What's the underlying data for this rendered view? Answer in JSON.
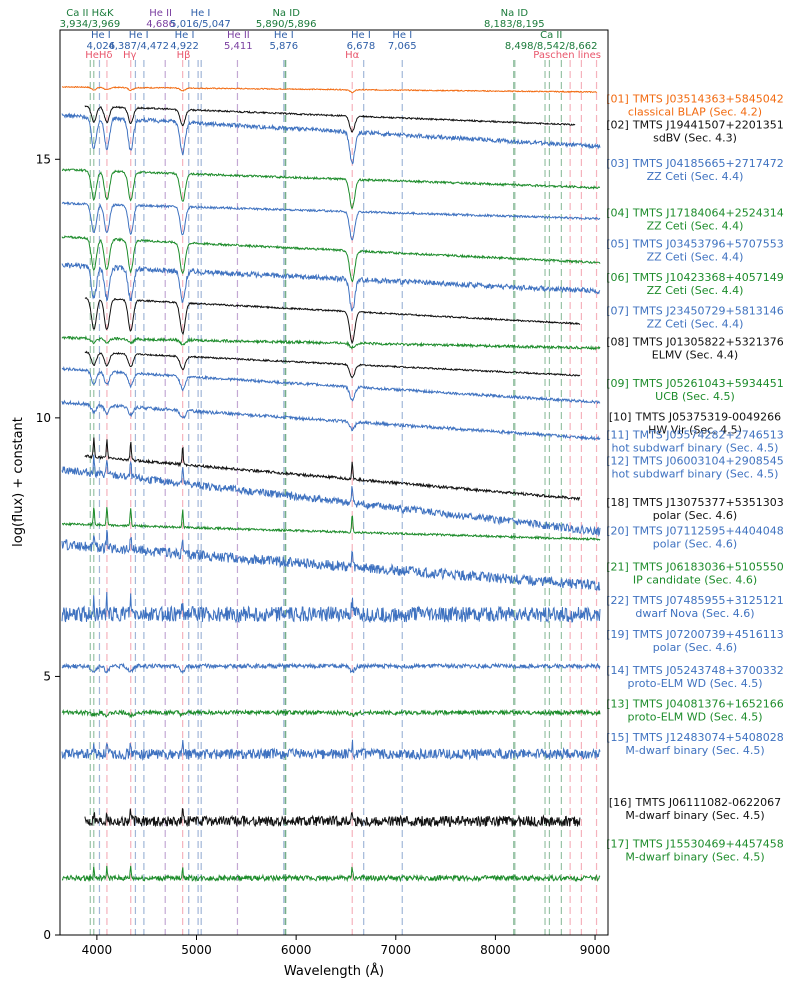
{
  "chart_data": {
    "type": "line",
    "xlabel": "Wavelength (Å)",
    "ylabel": "log(flux) + constant",
    "xlim": [
      3630,
      9130
    ],
    "ylim": [
      0,
      17.5
    ],
    "x_ticks": [
      4000,
      5000,
      6000,
      7000,
      8000,
      9000
    ],
    "y_ticks": [
      0,
      5,
      10,
      15
    ],
    "spectral_lines": [
      {
        "name": "Ca II H&K",
        "wavelengths_label": "3,934/3,969",
        "x": [
          3934,
          3969
        ],
        "color": "#1a7a3a",
        "tier": 1,
        "text_x": 3930
      },
      {
        "name": "He I",
        "wavelengths_label": "4,026",
        "x": [
          4026
        ],
        "color": "#2f5fa8",
        "tier": 2,
        "text_x": 4040
      },
      {
        "name": "HeHδ",
        "wavelengths_label": "",
        "x": [
          4101
        ],
        "color": "#e8556b",
        "tier": 3,
        "text_x": 4020
      },
      {
        "name": "He I",
        "wavelengths_label": "4,387/4,472",
        "x": [
          4387,
          4472
        ],
        "color": "#2f5fa8",
        "tier": 2,
        "text_x": 4420
      },
      {
        "name": "Hγ",
        "wavelengths_label": "",
        "x": [
          4340
        ],
        "color": "#e8556b",
        "tier": 3,
        "text_x": 4330
      },
      {
        "name": "He II",
        "wavelengths_label": "4,686",
        "x": [
          4686
        ],
        "color": "#7a3fa0",
        "tier": 1,
        "text_x": 4640
      },
      {
        "name": "He I",
        "wavelengths_label": "4,922",
        "x": [
          4922
        ],
        "color": "#2f5fa8",
        "tier": 2,
        "text_x": 4880
      },
      {
        "name": "Hβ",
        "wavelengths_label": "",
        "x": [
          4861
        ],
        "color": "#e8556b",
        "tier": 3,
        "text_x": 4870
      },
      {
        "name": "He I",
        "wavelengths_label": "5,016/5,047",
        "x": [
          5016,
          5047
        ],
        "color": "#2f5fa8",
        "tier": 1,
        "text_x": 5040
      },
      {
        "name": "He II",
        "wavelengths_label": "5,411",
        "x": [
          5411
        ],
        "color": "#7a3fa0",
        "tier": 2,
        "text_x": 5420
      },
      {
        "name": "Na ID",
        "wavelengths_label": "5,890/5,896",
        "x": [
          5890,
          5896
        ],
        "color": "#1a7a3a",
        "tier": 1,
        "text_x": 5900
      },
      {
        "name": "He I",
        "wavelengths_label": "5,876",
        "x": [
          5876
        ],
        "color": "#2f5fa8",
        "tier": 2,
        "text_x": 5876
      },
      {
        "name": "He I",
        "wavelengths_label": "6,678",
        "x": [
          6678
        ],
        "color": "#2f5fa8",
        "tier": 2,
        "text_x": 6650
      },
      {
        "name": "Hα",
        "wavelengths_label": "",
        "x": [
          6563
        ],
        "color": "#e8556b",
        "tier": 3,
        "text_x": 6563
      },
      {
        "name": "He I",
        "wavelengths_label": "7,065",
        "x": [
          7065
        ],
        "color": "#2f5fa8",
        "tier": 2,
        "text_x": 7065
      },
      {
        "name": "Na ID",
        "wavelengths_label": "8,183/8,195",
        "x": [
          8183,
          8195
        ],
        "color": "#1a7a3a",
        "tier": 1,
        "text_x": 8190
      },
      {
        "name": "Ca II",
        "wavelengths_label": "8,498/8,542/8,662",
        "x": [
          8498,
          8542,
          8662
        ],
        "color": "#1a7a3a",
        "tier": 2,
        "text_x": 8560
      },
      {
        "name": "Paschen lines",
        "wavelengths_label": "",
        "x": [
          8750,
          8863,
          9015
        ],
        "color": "#e8556b",
        "tier": 3,
        "text_x": 8720
      }
    ],
    "series": [
      {
        "id": "[01]",
        "name": "TMTS J03514363+5845042",
        "subtitle": "classical BLAP (Sec. 4.2)",
        "color": "#f26a10",
        "offset": 16.4,
        "x_range": [
          3650,
          9020
        ],
        "absorption": 0.05,
        "emission": 0,
        "noise": 0.02,
        "slope": -0.1,
        "label_y": 16.0
      },
      {
        "id": "[02]",
        "name": "TMTS J19441507+2201351",
        "subtitle": "sdBV (Sec. 4.3)",
        "color": "#111111",
        "offset": 16.05,
        "x_range": [
          3880,
          8800
        ],
        "absorption": 0.3,
        "emission": 0,
        "noise": 0.03,
        "slope": -0.4,
        "label_y": 15.5
      },
      {
        "id": "[03]",
        "name": "TMTS J04185665+2717472",
        "subtitle": "ZZ Ceti (Sec. 4.4)",
        "color": "#3f72c0",
        "offset": 15.85,
        "x_range": [
          3650,
          9050
        ],
        "absorption": 0.6,
        "emission": 0,
        "noise": 0.08,
        "slope": -0.6,
        "label_y": 14.75
      },
      {
        "id": "[04]",
        "name": "TMTS J17184064+2524314",
        "subtitle": "ZZ Ceti (Sec. 4.4)",
        "color": "#1d8c2b",
        "offset": 14.8,
        "x_range": [
          3650,
          9050
        ],
        "absorption": 0.55,
        "emission": 0,
        "noise": 0.04,
        "slope": -0.35,
        "label_y": 13.8
      },
      {
        "id": "[05]",
        "name": "TMTS J03453796+5707553",
        "subtitle": "ZZ Ceti (Sec. 4.4)",
        "color": "#3f72c0",
        "offset": 14.15,
        "x_range": [
          3650,
          9050
        ],
        "absorption": 0.55,
        "emission": 0,
        "noise": 0.04,
        "slope": -0.3,
        "label_y": 13.2
      },
      {
        "id": "[06]",
        "name": "TMTS J10423368+4057149",
        "subtitle": "ZZ Ceti (Sec. 4.4)",
        "color": "#1d8c2b",
        "offset": 13.5,
        "x_range": [
          3650,
          9050
        ],
        "absorption": 0.6,
        "emission": 0,
        "noise": 0.04,
        "slope": -0.5,
        "label_y": 12.55
      },
      {
        "id": "[07]",
        "name": "TMTS J23450729+5813146",
        "subtitle": "ZZ Ceti (Sec. 4.4)",
        "color": "#3f72c0",
        "offset": 12.95,
        "x_range": [
          3650,
          9050
        ],
        "absorption": 0.6,
        "emission": 0,
        "noise": 0.1,
        "slope": -0.5,
        "label_y": 11.9
      },
      {
        "id": "[08]",
        "name": "TMTS J01305822+5321376",
        "subtitle": "ELMV (Sec. 4.4)",
        "color": "#111111",
        "offset": 12.35,
        "x_range": [
          3880,
          8850
        ],
        "absorption": 0.6,
        "emission": 0,
        "noise": 0.03,
        "slope": -0.55,
        "label_y": 11.3
      },
      {
        "id": "[09]",
        "name": "TMTS J05261043+5934451",
        "subtitle": "UCB (Sec. 4.5)",
        "color": "#1d8c2b",
        "offset": 11.55,
        "x_range": [
          3650,
          9050
        ],
        "absorption": 0.08,
        "emission": 0,
        "noise": 0.05,
        "slope": -0.2,
        "label_y": 10.5
      },
      {
        "id": "[10]",
        "name": "TMTS J05375319-0049266",
        "subtitle": "HW Vir (Sec. 4.5)",
        "color": "#111111",
        "offset": 11.3,
        "x_range": [
          3880,
          8850
        ],
        "absorption": 0.25,
        "emission": 0,
        "noise": 0.03,
        "slope": -0.5,
        "label_y": 9.85
      },
      {
        "id": "[11]",
        "name": "TMTS J05574282+2746513",
        "subtitle": "hot subdwarf binary (Sec. 4.5)",
        "color": "#3f72c0",
        "offset": 10.95,
        "x_range": [
          3650,
          9050
        ],
        "absorption": 0.25,
        "emission": 0,
        "noise": 0.05,
        "slope": -0.65,
        "label_y": 9.5
      },
      {
        "id": "[12]",
        "name": "TMTS J06003104+2908545",
        "subtitle": "hot subdwarf binary (Sec. 4.5)",
        "color": "#3f72c0",
        "offset": 10.3,
        "x_range": [
          3650,
          9050
        ],
        "absorption": 0.15,
        "emission": 0,
        "noise": 0.06,
        "slope": -0.7,
        "label_y": 9.0
      },
      {
        "id": "[18]",
        "name": "TMTS J13075377+5351303",
        "subtitle": "polar (Sec. 4.6)",
        "color": "#111111",
        "offset": 9.3,
        "x_range": [
          3880,
          8850
        ],
        "absorption": 0,
        "emission": 0.35,
        "noise": 0.05,
        "slope": -0.9,
        "label_y": 8.2
      },
      {
        "id": "[20]",
        "name": "TMTS J07112595+4404048",
        "subtitle": "polar (Sec. 4.6)",
        "color": "#3f72c0",
        "offset": 9.0,
        "x_range": [
          3650,
          9050
        ],
        "absorption": 0,
        "emission": 0.3,
        "noise": 0.15,
        "slope": -1.2,
        "label_y": 7.65
      },
      {
        "id": "[21]",
        "name": "TMTS J06183036+5105550",
        "subtitle": "IP candidate (Sec. 4.6)",
        "color": "#1d8c2b",
        "offset": 7.95,
        "x_range": [
          3650,
          9050
        ],
        "absorption": 0,
        "emission": 0.35,
        "noise": 0.04,
        "slope": -0.3,
        "label_y": 6.95
      },
      {
        "id": "[22]",
        "name": "TMTS J07485955+3125121",
        "subtitle": "dwarf Nova (Sec. 4.6)",
        "color": "#3f72c0",
        "offset": 7.55,
        "x_range": [
          3650,
          9050
        ],
        "absorption": 0,
        "emission": 0.3,
        "noise": 0.2,
        "slope": -0.8,
        "label_y": 6.3
      },
      {
        "id": "[19]",
        "name": "TMTS J07200739+4516113",
        "subtitle": "polar (Sec. 4.6)",
        "color": "#3f72c0",
        "offset": 6.2,
        "x_range": [
          3650,
          9050
        ],
        "absorption": 0,
        "emission": 0.3,
        "noise": 0.3,
        "slope": 0.0,
        "label_y": 5.65
      },
      {
        "id": "[14]",
        "name": "TMTS J05243748+3700332",
        "subtitle": "proto-ELM WD (Sec. 4.5)",
        "color": "#3f72c0",
        "offset": 5.2,
        "x_range": [
          3650,
          9050
        ],
        "absorption": 0.1,
        "emission": 0,
        "noise": 0.08,
        "slope": 0.0,
        "label_y": 4.95
      },
      {
        "id": "[13]",
        "name": "TMTS J04081376+1652166",
        "subtitle": "proto-ELM WD (Sec. 4.5)",
        "color": "#1d8c2b",
        "offset": 4.3,
        "x_range": [
          3650,
          9050
        ],
        "absorption": 0.05,
        "emission": 0,
        "noise": 0.08,
        "slope": 0.0,
        "label_y": 4.3
      },
      {
        "id": "[15]",
        "name": "TMTS J12483074+5408028",
        "subtitle": "M-dwarf binary (Sec. 4.5)",
        "color": "#3f72c0",
        "offset": 3.5,
        "x_range": [
          3650,
          9050
        ],
        "absorption": 0,
        "emission": 0.2,
        "noise": 0.2,
        "slope": 0.0,
        "label_y": 3.65
      },
      {
        "id": "[16]",
        "name": "TMTS J06111082-0622067",
        "subtitle": "M-dwarf binary (Sec. 4.5)",
        "color": "#111111",
        "offset": 2.2,
        "x_range": [
          3880,
          8850
        ],
        "absorption": 0,
        "emission": 0.2,
        "noise": 0.2,
        "slope": 0.0,
        "label_y": 2.4
      },
      {
        "id": "[17]",
        "name": "TMTS J15530469+4457458",
        "subtitle": "M-dwarf binary (Sec. 4.5)",
        "color": "#1d8c2b",
        "offset": 1.1,
        "x_range": [
          3650,
          9050
        ],
        "absorption": 0,
        "emission": 0.2,
        "noise": 0.1,
        "slope": 0.0,
        "label_y": 1.6
      }
    ]
  }
}
